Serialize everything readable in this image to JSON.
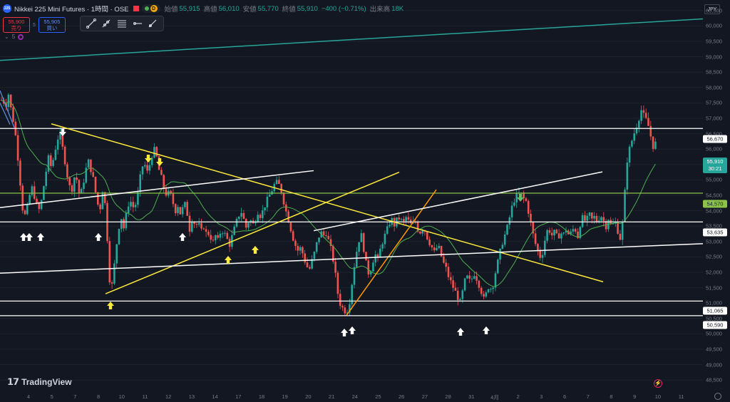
{
  "header": {
    "symbol_badge": "225",
    "title": "Nikkei 225 Mini Futures · 1時間 · OSE",
    "d_badge": "D",
    "ohlc": [
      {
        "label": "始値",
        "value": "55,915"
      },
      {
        "label": "高値",
        "value": "56,010"
      },
      {
        "label": "安値",
        "value": "55,770"
      },
      {
        "label": "終値",
        "value": "55,910"
      }
    ],
    "change": "−400 (−0.71%)",
    "volume_label": "出来高",
    "volume_value": "18K"
  },
  "order": {
    "sell_price": "55,900",
    "sell_label": "売り",
    "spread": "5",
    "buy_price": "55,905",
    "buy_label": "買い"
  },
  "indicator": {
    "label": "5"
  },
  "currency": "JPY",
  "price_axis": [
    "60,500",
    "60,000",
    "59,500",
    "59,000",
    "58,500",
    "58,000",
    "57,500",
    "57,000",
    "56,500",
    "56,000",
    "55,500",
    "55,000",
    "54,500",
    "54,000",
    "53,500",
    "53,000",
    "52,500",
    "52,000",
    "51,500",
    "51,000",
    "50,500",
    "50,000",
    "49,500",
    "49,000",
    "48,500"
  ],
  "tags": {
    "r1": "56,670",
    "current_price": "55,910",
    "countdown": "30:21",
    "r2": "54,570",
    "r3": "53,635",
    "s1": "51,065",
    "s2": "50,590"
  },
  "time_axis": [
    "4",
    "5",
    "7",
    "8",
    "10",
    "11",
    "12",
    "13",
    "14",
    "17",
    "18",
    "19",
    "20",
    "21",
    "24",
    "25",
    "26",
    "27",
    "28",
    "31",
    "4月",
    "2",
    "3",
    "6",
    "7",
    "8",
    "9",
    "10",
    "11"
  ],
  "brand": "TradingView",
  "colors": {
    "background": "#131722",
    "up": "#26a69a",
    "down": "#ef5350",
    "ma": "#4caf50",
    "trend": "#ffeb3b",
    "channel": "#26a69a",
    "level": "#ffffff",
    "support_green": "#8bc34a",
    "orange": "#ff9800"
  },
  "chart_data": {
    "type": "candlestick",
    "symbol": "Nikkei 225 Mini Futures",
    "interval": "1時間",
    "exchange": "OSE",
    "ylim": [
      48250,
      60750
    ],
    "horizontal_levels": [
      56670,
      54570,
      53635,
      51065,
      50590
    ],
    "close_path": [
      [
        0,
        57600
      ],
      [
        4,
        57600
      ],
      [
        8,
        57400
      ],
      [
        12,
        57800
      ],
      [
        16,
        57200
      ],
      [
        20,
        56800
      ],
      [
        24,
        56000
      ],
      [
        28,
        55000
      ],
      [
        32,
        54000
      ],
      [
        36,
        53800
      ],
      [
        40,
        54300
      ],
      [
        44,
        54800
      ],
      [
        48,
        54500
      ],
      [
        52,
        54100
      ],
      [
        56,
        54000
      ],
      [
        60,
        54600
      ],
      [
        64,
        55200
      ],
      [
        68,
        55700
      ],
      [
        72,
        55400
      ],
      [
        76,
        55800
      ],
      [
        80,
        56300
      ],
      [
        84,
        56500
      ],
      [
        88,
        56000
      ],
      [
        92,
        55500
      ],
      [
        96,
        54900
      ],
      [
        100,
        54600
      ],
      [
        104,
        55100
      ],
      [
        108,
        55000
      ],
      [
        112,
        54400
      ],
      [
        116,
        54800
      ],
      [
        120,
        55300
      ],
      [
        124,
        55600
      ],
      [
        128,
        55300
      ],
      [
        132,
        54900
      ],
      [
        136,
        54300
      ],
      [
        140,
        54000
      ],
      [
        144,
        54700
      ],
      [
        148,
        54100
      ],
      [
        152,
        52500
      ],
      [
        155,
        51300
      ],
      [
        158,
        51700
      ],
      [
        162,
        52600
      ],
      [
        166,
        53400
      ],
      [
        170,
        53800
      ],
      [
        174,
        53400
      ],
      [
        178,
        54000
      ],
      [
        182,
        54400
      ],
      [
        186,
        54100
      ],
      [
        190,
        54200
      ],
      [
        194,
        54600
      ],
      [
        198,
        55300
      ],
      [
        202,
        55600
      ],
      [
        206,
        55200
      ],
      [
        210,
        55500
      ],
      [
        214,
        55900
      ],
      [
        218,
        56000
      ],
      [
        222,
        55400
      ],
      [
        226,
        55100
      ],
      [
        230,
        54700
      ],
      [
        234,
        54500
      ],
      [
        238,
        54600
      ],
      [
        242,
        54300
      ],
      [
        246,
        54000
      ],
      [
        250,
        54200
      ],
      [
        254,
        53800
      ],
      [
        258,
        54300
      ],
      [
        262,
        54000
      ],
      [
        266,
        53400
      ],
      [
        270,
        53800
      ],
      [
        274,
        53500
      ],
      [
        278,
        53600
      ],
      [
        282,
        53300
      ],
      [
        286,
        53500
      ],
      [
        290,
        53200
      ],
      [
        294,
        53300
      ],
      [
        298,
        52900
      ],
      [
        302,
        53200
      ],
      [
        306,
        53000
      ],
      [
        310,
        53400
      ],
      [
        314,
        53300
      ],
      [
        318,
        53100
      ],
      [
        322,
        52900
      ],
      [
        326,
        53200
      ],
      [
        330,
        53500
      ],
      [
        334,
        53800
      ],
      [
        338,
        54000
      ],
      [
        342,
        53700
      ],
      [
        346,
        53400
      ],
      [
        350,
        53800
      ],
      [
        354,
        53500
      ],
      [
        358,
        53700
      ],
      [
        362,
        54000
      ],
      [
        366,
        53800
      ],
      [
        370,
        54100
      ],
      [
        374,
        54300
      ],
      [
        378,
        54500
      ],
      [
        382,
        54700
      ],
      [
        386,
        54900
      ],
      [
        390,
        54900
      ],
      [
        394,
        54700
      ],
      [
        398,
        54300
      ],
      [
        402,
        53900
      ],
      [
        406,
        53600
      ],
      [
        410,
        53200
      ],
      [
        414,
        52900
      ],
      [
        418,
        52700
      ],
      [
        422,
        52800
      ],
      [
        426,
        52500
      ],
      [
        430,
        52200
      ],
      [
        434,
        52100
      ],
      [
        438,
        52400
      ],
      [
        442,
        52700
      ],
      [
        446,
        53100
      ],
      [
        450,
        53300
      ],
      [
        454,
        53200
      ],
      [
        458,
        53300
      ],
      [
        462,
        52900
      ],
      [
        466,
        52600
      ],
      [
        470,
        52000
      ],
      [
        474,
        51300
      ],
      [
        478,
        50900
      ],
      [
        482,
        50800
      ],
      [
        486,
        50700
      ],
      [
        490,
        51000
      ],
      [
        494,
        51700
      ],
      [
        498,
        52400
      ],
      [
        502,
        52900
      ],
      [
        506,
        53300
      ],
      [
        510,
        52800
      ],
      [
        514,
        52200
      ],
      [
        518,
        51900
      ],
      [
        522,
        52300
      ],
      [
        526,
        52600
      ],
      [
        530,
        52400
      ],
      [
        534,
        52800
      ],
      [
        538,
        53100
      ],
      [
        542,
        53300
      ],
      [
        546,
        53600
      ],
      [
        550,
        53700
      ],
      [
        554,
        53500
      ],
      [
        558,
        53800
      ],
      [
        562,
        53700
      ],
      [
        566,
        53600
      ],
      [
        570,
        53800
      ],
      [
        574,
        53600
      ],
      [
        578,
        53500
      ],
      [
        582,
        53700
      ],
      [
        586,
        53400
      ],
      [
        590,
        53300
      ],
      [
        594,
        53500
      ],
      [
        598,
        53200
      ],
      [
        602,
        53000
      ],
      [
        606,
        52800
      ],
      [
        610,
        52600
      ],
      [
        614,
        52900
      ],
      [
        618,
        52600
      ],
      [
        622,
        52300
      ],
      [
        626,
        52100
      ],
      [
        630,
        51800
      ],
      [
        634,
        51600
      ],
      [
        638,
        51400
      ],
      [
        642,
        51200
      ],
      [
        646,
        51000
      ],
      [
        650,
        51500
      ],
      [
        654,
        51900
      ],
      [
        658,
        51700
      ],
      [
        662,
        51800
      ],
      [
        666,
        52000
      ],
      [
        670,
        51700
      ],
      [
        674,
        51500
      ],
      [
        678,
        51100
      ],
      [
        682,
        51300
      ],
      [
        686,
        51600
      ],
      [
        690,
        51400
      ],
      [
        694,
        51900
      ],
      [
        698,
        52300
      ],
      [
        702,
        52700
      ],
      [
        706,
        53100
      ],
      [
        710,
        53300
      ],
      [
        714,
        53700
      ],
      [
        718,
        54100
      ],
      [
        722,
        54400
      ],
      [
        726,
        54500
      ],
      [
        730,
        54600
      ],
      [
        734,
        54400
      ],
      [
        738,
        54300
      ],
      [
        742,
        53900
      ],
      [
        746,
        53400
      ],
      [
        750,
        53000
      ],
      [
        754,
        52700
      ],
      [
        758,
        52500
      ],
      [
        762,
        52700
      ],
      [
        766,
        53300
      ],
      [
        770,
        53400
      ],
      [
        774,
        53200
      ],
      [
        778,
        53300
      ],
      [
        782,
        53100
      ],
      [
        786,
        53300
      ],
      [
        790,
        53200
      ],
      [
        794,
        53400
      ],
      [
        798,
        53200
      ],
      [
        802,
        53300
      ],
      [
        806,
        53500
      ],
      [
        810,
        53100
      ],
      [
        814,
        53600
      ],
      [
        818,
        53800
      ],
      [
        822,
        53600
      ],
      [
        826,
        53900
      ],
      [
        830,
        53700
      ],
      [
        834,
        53800
      ],
      [
        838,
        53600
      ],
      [
        842,
        53900
      ],
      [
        846,
        53700
      ],
      [
        850,
        53500
      ],
      [
        854,
        53800
      ],
      [
        858,
        53400
      ],
      [
        862,
        53700
      ],
      [
        866,
        53400
      ],
      [
        870,
        53100
      ],
      [
        874,
        53700
      ],
      [
        876,
        54400
      ],
      [
        878,
        55200
      ],
      [
        880,
        55700
      ],
      [
        884,
        56100
      ],
      [
        888,
        56400
      ],
      [
        892,
        56700
      ],
      [
        896,
        57000
      ],
      [
        900,
        57300
      ],
      [
        904,
        57000
      ],
      [
        908,
        56900
      ],
      [
        912,
        56500
      ],
      [
        916,
        56100
      ],
      [
        920,
        56200
      ],
      [
        922,
        55900
      ]
    ],
    "annotations": {
      "lines": [
        {
          "name": "ascending-channel-top",
          "color": "#26a69a",
          "points": [
            [
              0,
              58880
            ],
            [
              986,
              60230
            ]
          ]
        },
        {
          "name": "descending-trendline",
          "color": "#ffeb3b",
          "points": [
            [
              72,
              56820
            ],
            [
              846,
              51690
            ]
          ]
        },
        {
          "name": "ascending-trendline-yellow",
          "color": "#ffeb3b",
          "points": [
            [
              148,
              51300
            ],
            [
              560,
              55250
            ]
          ]
        },
        {
          "name": "steep-trendline-orange",
          "color": "#ff9800",
          "points": [
            [
              486,
              50600
            ],
            [
              612,
              54680
            ]
          ]
        },
        {
          "name": "upper-channel-white",
          "color": "#ffffff",
          "points": [
            [
              440,
              53350
            ],
            [
              845,
              55260
            ]
          ]
        },
        {
          "name": "lower-support-white",
          "color": "#ffffff",
          "points": [
            [
              0,
              51970
            ],
            [
              986,
              52930
            ]
          ]
        },
        {
          "name": "left-support-white",
          "color": "#ffffff",
          "points": [
            [
              0,
              54100
            ],
            [
              440,
              55300
            ]
          ]
        }
      ],
      "white_up_arrows_x": [
        33,
        41,
        57,
        138,
        256,
        483,
        494,
        646,
        682
      ],
      "white_down_arrows_x": [
        88
      ],
      "yellow_up_arrows_x": [
        155,
        320,
        358
      ],
      "yellow_down_arrows_x": [
        208,
        224
      ],
      "green_down_arrows_x": [
        730
      ]
    }
  }
}
